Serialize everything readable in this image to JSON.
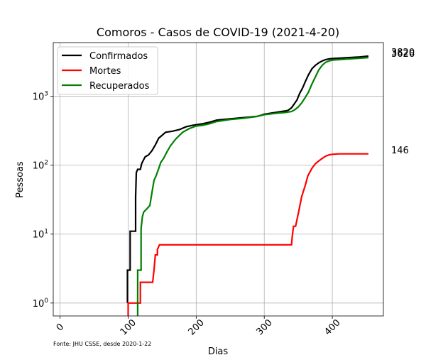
{
  "chart_data": {
    "type": "line",
    "title": "Comoros - Casos de COVID-19 (2021-4-20)",
    "xlabel": "Dias",
    "ylabel": "Pessoas",
    "yscale": "log",
    "xlim": [
      -10,
      475
    ],
    "ylim": [
      0.65,
      6000
    ],
    "xticks": [
      0,
      100,
      200,
      300,
      400
    ],
    "xtick_labels": [
      "0",
      "100",
      "200",
      "300",
      "400"
    ],
    "yticks": [
      1,
      10,
      100,
      1000
    ],
    "ytick_labels": [
      {
        "base": "10",
        "exp": "0"
      },
      {
        "base": "10",
        "exp": "1"
      },
      {
        "base": "10",
        "exp": "2"
      },
      {
        "base": "10",
        "exp": "3"
      }
    ],
    "grid": true,
    "legend_position": "top-left",
    "source_note": "Fonte: JHU CSSE, desde 2020-1-22",
    "series": [
      {
        "name": "Confirmados",
        "color": "#000000",
        "end_label": "3820",
        "points": [
          [
            99,
            1
          ],
          [
            99,
            3
          ],
          [
            103,
            3
          ],
          [
            103,
            11
          ],
          [
            111,
            11
          ],
          [
            111,
            34
          ],
          [
            112,
            78
          ],
          [
            114,
            87
          ],
          [
            118,
            87
          ],
          [
            120,
            106
          ],
          [
            125,
            132
          ],
          [
            130,
            141
          ],
          [
            135,
            162
          ],
          [
            140,
            197
          ],
          [
            145,
            247
          ],
          [
            150,
            272
          ],
          [
            155,
            300
          ],
          [
            165,
            311
          ],
          [
            175,
            328
          ],
          [
            185,
            360
          ],
          [
            195,
            380
          ],
          [
            210,
            400
          ],
          [
            220,
            420
          ],
          [
            230,
            450
          ],
          [
            250,
            470
          ],
          [
            270,
            490
          ],
          [
            290,
            510
          ],
          [
            300,
            550
          ],
          [
            310,
            570
          ],
          [
            320,
            590
          ],
          [
            330,
            610
          ],
          [
            335,
            625
          ],
          [
            340,
            680
          ],
          [
            345,
            800
          ],
          [
            348,
            880
          ],
          [
            352,
            1100
          ],
          [
            356,
            1300
          ],
          [
            360,
            1600
          ],
          [
            365,
            2050
          ],
          [
            370,
            2500
          ],
          [
            375,
            2800
          ],
          [
            380,
            3050
          ],
          [
            385,
            3250
          ],
          [
            390,
            3400
          ],
          [
            395,
            3480
          ],
          [
            400,
            3520
          ],
          [
            420,
            3620
          ],
          [
            440,
            3720
          ],
          [
            453,
            3820
          ]
        ]
      },
      {
        "name": "Mortes",
        "color": "#ff0000",
        "end_label": "146",
        "points": [
          [
            100,
            0.5
          ],
          [
            100,
            1
          ],
          [
            118,
            1
          ],
          [
            118,
            2
          ],
          [
            136,
            2
          ],
          [
            138,
            3
          ],
          [
            140,
            5
          ],
          [
            143,
            5
          ],
          [
            143,
            6
          ],
          [
            146,
            7
          ],
          [
            340,
            7
          ],
          [
            341,
            9
          ],
          [
            343,
            13
          ],
          [
            346,
            13
          ],
          [
            348,
            16
          ],
          [
            350,
            20
          ],
          [
            355,
            35
          ],
          [
            360,
            50
          ],
          [
            364,
            70
          ],
          [
            370,
            90
          ],
          [
            375,
            105
          ],
          [
            380,
            115
          ],
          [
            385,
            125
          ],
          [
            390,
            135
          ],
          [
            395,
            141
          ],
          [
            400,
            144
          ],
          [
            410,
            146
          ],
          [
            453,
            146
          ]
        ]
      },
      {
        "name": "Recuperados",
        "color": "#008000",
        "end_label": "3626",
        "points": [
          [
            114,
            0.5
          ],
          [
            114,
            3
          ],
          [
            119,
            3
          ],
          [
            119,
            12
          ],
          [
            121,
            18
          ],
          [
            123,
            21
          ],
          [
            127,
            23
          ],
          [
            132,
            26
          ],
          [
            135,
            40
          ],
          [
            138,
            60
          ],
          [
            141,
            70
          ],
          [
            145,
            90
          ],
          [
            148,
            110
          ],
          [
            152,
            125
          ],
          [
            156,
            150
          ],
          [
            162,
            190
          ],
          [
            170,
            240
          ],
          [
            180,
            300
          ],
          [
            190,
            340
          ],
          [
            200,
            370
          ],
          [
            210,
            380
          ],
          [
            220,
            400
          ],
          [
            230,
            430
          ],
          [
            250,
            460
          ],
          [
            270,
            480
          ],
          [
            290,
            510
          ],
          [
            300,
            540
          ],
          [
            310,
            555
          ],
          [
            320,
            570
          ],
          [
            330,
            580
          ],
          [
            340,
            600
          ],
          [
            345,
            640
          ],
          [
            350,
            700
          ],
          [
            355,
            800
          ],
          [
            360,
            950
          ],
          [
            365,
            1150
          ],
          [
            370,
            1500
          ],
          [
            375,
            1900
          ],
          [
            380,
            2400
          ],
          [
            385,
            2800
          ],
          [
            390,
            3100
          ],
          [
            395,
            3250
          ],
          [
            400,
            3350
          ],
          [
            420,
            3450
          ],
          [
            440,
            3560
          ],
          [
            453,
            3626
          ]
        ]
      }
    ]
  }
}
